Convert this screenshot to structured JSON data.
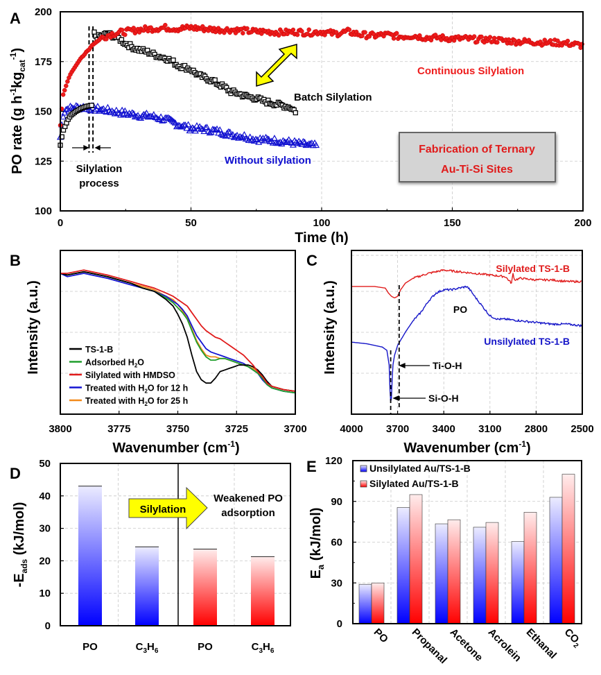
{
  "chart_data": [
    {
      "panel": "A",
      "type": "scatter",
      "title": "",
      "xlabel": "Time (h)",
      "ylabel": "PO rate (g h-1kgcat-1)",
      "ylabel_parts": {
        "main": "PO rate (g h",
        "sup1": "-1",
        "mid": "kg",
        "sub": "cat",
        "sup2": "-1",
        "end": ")"
      },
      "xlim": [
        0,
        200
      ],
      "ylim": [
        100,
        200
      ],
      "xticks": [
        0,
        50,
        100,
        150,
        200
      ],
      "yticks": [
        100,
        125,
        150,
        175,
        200
      ],
      "grid": true,
      "series": [
        {
          "name": "Continuous Silylation",
          "marker": "circle",
          "color": "#ee1c1c",
          "x": [
            0,
            1,
            2,
            3,
            4,
            5,
            6,
            7,
            8,
            9,
            10,
            11,
            12,
            14,
            16,
            18,
            20,
            25,
            30,
            35,
            40,
            45,
            50,
            55,
            60,
            65,
            70,
            75,
            80,
            85,
            90,
            95,
            100,
            105,
            110,
            115,
            120,
            125,
            130,
            135,
            140,
            145,
            150,
            155,
            160,
            165,
            170,
            175,
            180,
            185,
            190,
            195,
            200
          ],
          "y": [
            143,
            158,
            162,
            166,
            169,
            171,
            173,
            175,
            177,
            178,
            180,
            181,
            183,
            185,
            187,
            188,
            189,
            190,
            191,
            191.5,
            192,
            191.5,
            192,
            191.5,
            191,
            191,
            190.5,
            190,
            190,
            189.5,
            190,
            189.5,
            190,
            189,
            190,
            188.5,
            188,
            188.5,
            187.5,
            188,
            187,
            187,
            186.5,
            186.5,
            186,
            186,
            185.5,
            185,
            185,
            184.5,
            184.5,
            184,
            183
          ]
        },
        {
          "name": "Batch Silylation",
          "marker": "square",
          "color": "#000000",
          "x": [
            0,
            1,
            2,
            3,
            4,
            5,
            6,
            8,
            10,
            12,
            13,
            14,
            16,
            18,
            20,
            22,
            25,
            28,
            30,
            33,
            35,
            38,
            40,
            43,
            45,
            48,
            50,
            53,
            55,
            58,
            60,
            63,
            65,
            68,
            70,
            73,
            75,
            78,
            80,
            83,
            85,
            88,
            90
          ],
          "y": [
            133,
            140,
            143,
            146,
            148,
            149,
            150,
            151.5,
            152.5,
            153,
            189,
            187,
            188,
            189,
            188,
            187,
            184,
            182,
            181,
            180,
            179,
            177.5,
            177,
            175,
            173,
            172,
            171,
            168,
            167,
            165.5,
            164,
            162,
            160,
            159,
            158,
            157,
            156.5,
            155,
            154.5,
            153.5,
            153,
            152,
            150
          ]
        },
        {
          "name": "Without silylation",
          "marker": "triangle",
          "color": "#1010d0",
          "x": [
            0,
            1,
            2,
            4,
            6,
            8,
            10,
            12,
            15,
            18,
            20,
            25,
            30,
            35,
            40,
            45,
            50,
            55,
            60,
            65,
            70,
            75,
            80,
            85,
            90,
            95,
            98
          ],
          "y": [
            137,
            148,
            151,
            151.5,
            152,
            152,
            152,
            151.5,
            151,
            150.5,
            150,
            149,
            148,
            147.5,
            146,
            143.5,
            141.5,
            141,
            140,
            138.5,
            137.5,
            136,
            135.5,
            135,
            134,
            133,
            132.5
          ]
        }
      ],
      "annotations": {
        "panel_label": "A",
        "continuous": "Continuous Silylation",
        "batch": "Batch Silylation",
        "without": "Without silylation",
        "silylation_process_1": "Silylation",
        "silylation_process_2": "process",
        "box_line1": "Fabrication of Ternary",
        "box_line2": "Au-Ti-Si Sites",
        "dashed_lines_x": [
          11,
          12.5
        ],
        "box_bg": "#d4d4d4",
        "arrow_color": "#ffff00"
      }
    },
    {
      "panel": "B",
      "type": "line",
      "xlabel": "Wavenumber (cm-1)",
      "xlabel_parts": {
        "main": "Wavenumber (cm",
        "sup": "-1",
        "end": ")"
      },
      "ylabel": "Intensity (a.u.)",
      "xlim": [
        3800,
        3700
      ],
      "xticks": [
        3800,
        3775,
        3750,
        3725,
        3700
      ],
      "grid": true,
      "y_units": "a.u. (relative, 0 = bottom, 1 = top of frame)",
      "x": [
        3800,
        3797,
        3790,
        3780,
        3770,
        3765,
        3760,
        3755,
        3752,
        3750,
        3748,
        3746,
        3744,
        3742,
        3740,
        3738,
        3736,
        3734,
        3732,
        3730,
        3728,
        3726,
        3724,
        3722,
        3720,
        3718,
        3716,
        3714,
        3712,
        3710,
        3705,
        3700
      ],
      "series": [
        {
          "name": "TS-1-B",
          "color": "#000000",
          "y": [
            0.86,
            0.85,
            0.87,
            0.84,
            0.8,
            0.77,
            0.75,
            0.7,
            0.66,
            0.61,
            0.55,
            0.47,
            0.36,
            0.26,
            0.21,
            0.19,
            0.19,
            0.22,
            0.26,
            0.27,
            0.28,
            0.29,
            0.3,
            0.3,
            0.3,
            0.29,
            0.27,
            0.24,
            0.2,
            0.17,
            0.15,
            0.14
          ]
        },
        {
          "name": "Adsorbed H2O",
          "color": "#1f9e2c",
          "y": [
            0.86,
            0.85,
            0.87,
            0.84,
            0.8,
            0.77,
            0.75,
            0.71,
            0.68,
            0.65,
            0.62,
            0.58,
            0.51,
            0.44,
            0.39,
            0.35,
            0.33,
            0.33,
            0.34,
            0.34,
            0.33,
            0.32,
            0.31,
            0.3,
            0.29,
            0.27,
            0.25,
            0.22,
            0.18,
            0.16,
            0.14,
            0.13
          ]
        },
        {
          "name": "Silylated with HMDSO",
          "color": "#e01b1b",
          "y": [
            0.86,
            0.86,
            0.88,
            0.85,
            0.81,
            0.79,
            0.77,
            0.74,
            0.72,
            0.7,
            0.68,
            0.66,
            0.62,
            0.58,
            0.54,
            0.51,
            0.49,
            0.47,
            0.46,
            0.44,
            0.42,
            0.4,
            0.38,
            0.36,
            0.33,
            0.3,
            0.26,
            0.23,
            0.19,
            0.17,
            0.15,
            0.14
          ]
        },
        {
          "name": "Treated with H2O for 12 h",
          "color": "#1414d2",
          "y": [
            0.86,
            0.84,
            0.86,
            0.83,
            0.79,
            0.77,
            0.75,
            0.72,
            0.69,
            0.67,
            0.64,
            0.6,
            0.54,
            0.48,
            0.44,
            0.4,
            0.38,
            0.37,
            0.36,
            0.35,
            0.34,
            0.33,
            0.32,
            0.31,
            0.29,
            0.27,
            0.25,
            0.21,
            0.18,
            0.16,
            0.14,
            0.13
          ]
        },
        {
          "name": "Treated with H2O for 25 h",
          "color": "#f28a1a",
          "y": [
            0.86,
            0.85,
            0.87,
            0.84,
            0.8,
            0.78,
            0.76,
            0.72,
            0.7,
            0.67,
            0.63,
            0.59,
            0.52,
            0.45,
            0.4,
            0.36,
            0.35,
            0.35,
            0.34,
            0.34,
            0.33,
            0.32,
            0.31,
            0.3,
            0.29,
            0.28,
            0.26,
            0.22,
            0.19,
            0.17,
            0.15,
            0.14
          ]
        }
      ],
      "legend": [
        "TS-1-B",
        "Adsorbed H2O",
        "Silylated with HMDSO",
        "Treated with H2O for 12 h",
        "Treated with H2O for 25 h"
      ],
      "legend_parts": [
        {
          "a": "TS-1-B",
          "sub": "",
          "b": ""
        },
        {
          "a": "Adsorbed H",
          "sub": "2",
          "b": "O"
        },
        {
          "a": "Silylated with HMDSO",
          "sub": "",
          "b": ""
        },
        {
          "a": "Treated with H",
          "sub": "2",
          "b": "O for 12 h"
        },
        {
          "a": "Treated with H",
          "sub": "2",
          "b": "O for 25 h"
        }
      ],
      "legend_position": "bottom-left",
      "panel_label": "B"
    },
    {
      "panel": "C",
      "type": "line",
      "xlabel": "Wavenumber (cm-1)",
      "ylabel": "Intensity (a.u.)",
      "xlim": [
        4000,
        2500
      ],
      "xticks": [
        4000,
        3700,
        3400,
        3100,
        2800,
        2500
      ],
      "grid": true,
      "y_units": "a.u. (relative, 0 = bottom, 1 = top of frame)",
      "series": [
        {
          "name": "Silylated TS-1-B",
          "color": "#e01b1b",
          "x": [
            4000,
            3850,
            3780,
            3760,
            3740,
            3720,
            3700,
            3680,
            3650,
            3600,
            3500,
            3400,
            3300,
            3200,
            3100,
            3000,
            2960,
            2950,
            2940,
            2900,
            2800,
            2700,
            2600,
            2500
          ],
          "y": [
            0.78,
            0.78,
            0.77,
            0.74,
            0.72,
            0.71,
            0.72,
            0.76,
            0.8,
            0.83,
            0.86,
            0.88,
            0.87,
            0.86,
            0.85,
            0.84,
            0.8,
            0.86,
            0.82,
            0.83,
            0.82,
            0.82,
            0.81,
            0.81
          ]
        },
        {
          "name": "Unsilylated TS-1-B",
          "color": "#1414c8",
          "x": [
            4000,
            3900,
            3800,
            3770,
            3755,
            3748,
            3742,
            3736,
            3730,
            3720,
            3700,
            3650,
            3600,
            3550,
            3500,
            3450,
            3400,
            3350,
            3300,
            3250,
            3230,
            3200,
            3150,
            3100,
            3050,
            3000,
            2900,
            2800,
            2700,
            2600,
            2500
          ],
          "y": [
            0.44,
            0.43,
            0.41,
            0.39,
            0.3,
            0.1,
            0.05,
            0.2,
            0.3,
            0.36,
            0.42,
            0.5,
            0.57,
            0.62,
            0.69,
            0.74,
            0.76,
            0.76,
            0.77,
            0.78,
            0.76,
            0.72,
            0.66,
            0.6,
            0.58,
            0.58,
            0.57,
            0.56,
            0.55,
            0.55,
            0.54
          ]
        }
      ],
      "annotations": {
        "panel_label": "C",
        "po": "PO",
        "tioh": "Ti-O-H",
        "sioh": "Si-O-H",
        "silylated": "Silylated TS-1-B",
        "unsilylated": "Unsilylated TS-1-B",
        "dashed_lines_x": [
          3745,
          3690
        ]
      }
    },
    {
      "panel": "D",
      "type": "bar",
      "ylabel": "-Eads (kJ/mol)",
      "ylabel_parts": {
        "a": "-E",
        "sub": "ads",
        "b": " (kJ/mol)"
      },
      "categories": [
        "PO",
        "C3H6",
        "PO",
        "C3H6"
      ],
      "category_parts": [
        {
          "a": "PO",
          "s1": "",
          "b": "",
          "s2": ""
        },
        {
          "a": "C",
          "s1": "3",
          "b": "H",
          "s2": "6"
        },
        {
          "a": "PO",
          "s1": "",
          "b": "",
          "s2": ""
        },
        {
          "a": "C",
          "s1": "3",
          "b": "H",
          "s2": "6"
        }
      ],
      "values": [
        43,
        24.3,
        23.6,
        21.3
      ],
      "groups": [
        "unsilylated",
        "unsilylated",
        "silylated",
        "silylated"
      ],
      "colors": [
        "#0000ff",
        "#0000ff",
        "#ff0000",
        "#ff0000"
      ],
      "ylim": [
        0,
        50
      ],
      "yticks": [
        0,
        10,
        20,
        30,
        40,
        50
      ],
      "grid": true,
      "annotations": {
        "panel_label": "D",
        "arrow_label": "Silylation",
        "result_line1": "Weakened PO",
        "result_line2": "adsorption"
      }
    },
    {
      "panel": "E",
      "type": "bar",
      "ylabel": "Ea (kJ/mol)",
      "ylabel_parts": {
        "a": "E",
        "sub": "a",
        "b": " (kJ/mol)"
      },
      "categories": [
        "PO",
        "Propanal",
        "Acetone",
        "Acrolein",
        "Ethanal",
        "CO2"
      ],
      "ylim": [
        0,
        120
      ],
      "yticks": [
        0,
        30,
        60,
        90,
        120
      ],
      "grid": true,
      "series": [
        {
          "name": "Unsilylated Au/TS-1-B",
          "color": "#0000ff",
          "values": [
            29,
            85.5,
            73.5,
            71,
            60.5,
            93
          ]
        },
        {
          "name": "Silylated Au/TS-1-B",
          "color": "#ff0000",
          "values": [
            30,
            95,
            76.5,
            74.5,
            82,
            110
          ]
        }
      ],
      "legend_position": "top-left",
      "panel_label": "E"
    }
  ]
}
